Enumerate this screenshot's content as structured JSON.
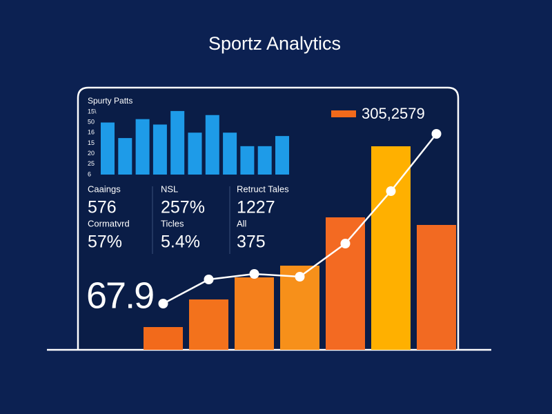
{
  "title": "Sportz Analytics",
  "big_number": "67.9",
  "stats": [
    {
      "label": "Caaings",
      "value": "576"
    },
    {
      "label": "NSL",
      "value": "257%"
    },
    {
      "label": "Retruct Tales",
      "value": "1227"
    },
    {
      "label": "Cormatvrd",
      "value": "57%"
    },
    {
      "label": "Ticles",
      "value": "5.4%"
    },
    {
      "label": "All",
      "value": "375"
    }
  ],
  "chart_data": [
    {
      "type": "bar",
      "title": "Spurty Patts",
      "y_labels": [
        "15\\",
        "50",
        "16",
        "15",
        "20",
        "25",
        "6"
      ],
      "categories": [
        null,
        null,
        null,
        null,
        null,
        null,
        null,
        null,
        null,
        null,
        null
      ],
      "values": [
        77,
        54,
        82,
        74,
        94,
        62,
        88,
        62,
        42,
        42,
        57
      ],
      "color": "#1e9be8",
      "ylim": [
        0,
        100
      ]
    },
    {
      "type": "bar",
      "categories": [
        null,
        null,
        null,
        null,
        null,
        null,
        null
      ],
      "ylim": [
        0,
        320
      ],
      "series": [
        {
          "name": "305,2579",
          "color": "#f26a1b",
          "colors": [
            "#f26a1b",
            "#f3721c",
            "#f5801c",
            "#f7901a",
            "#f36a22",
            "#ffb000",
            "#f26a22"
          ],
          "values": [
            33,
            73,
            105,
            122,
            192,
            295,
            181
          ]
        },
        {
          "type": "line",
          "color": "#ffffff",
          "values": [
            67,
            102,
            110,
            106,
            154,
            230,
            313
          ]
        }
      ]
    }
  ]
}
